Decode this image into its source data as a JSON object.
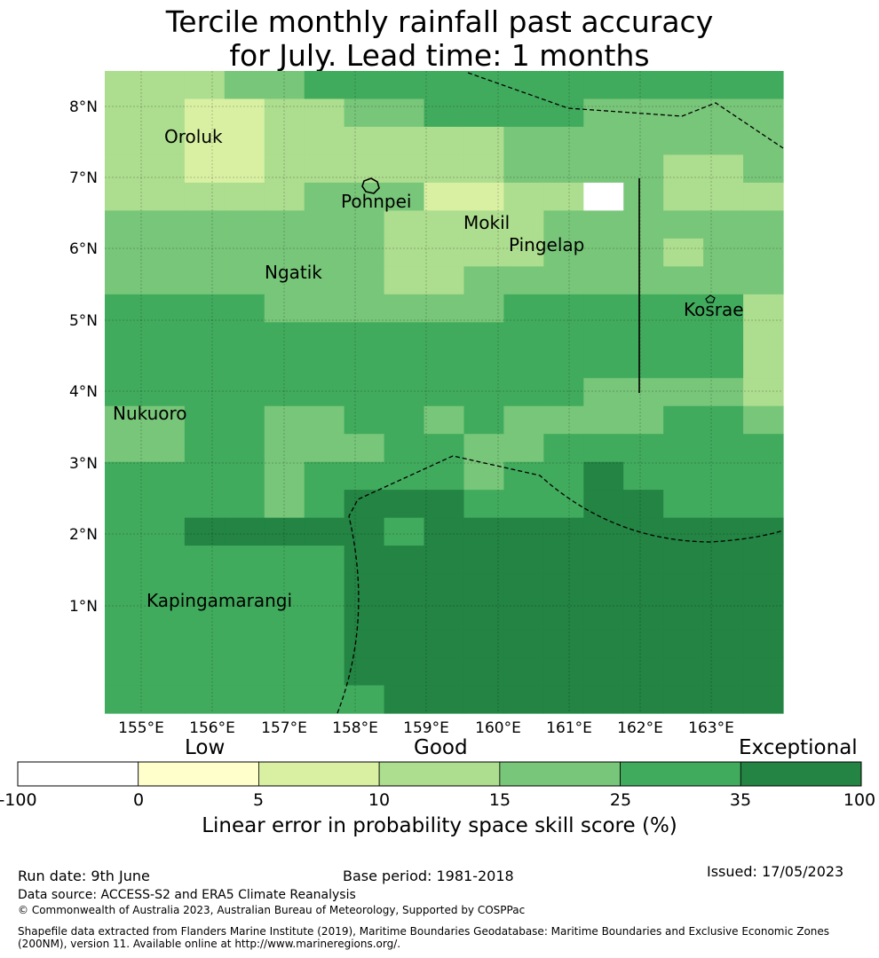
{
  "title": {
    "line1": "Tercile monthly rainfall past accuracy",
    "line2": "for July. Lead time: 1 months"
  },
  "map": {
    "lat_ticks": [
      "8°N",
      "7°N",
      "6°N",
      "5°N",
      "4°N",
      "3°N",
      "2°N",
      "1°N"
    ],
    "lon_ticks": [
      "155°E",
      "156°E",
      "157°E",
      "158°E",
      "159°E",
      "160°E",
      "161°E",
      "162°E",
      "163°E"
    ],
    "places": [
      "Oroluk",
      "Pohnpei",
      "Mokil",
      "Pingelap",
      "Ngatik",
      "Kosrae",
      "Nukuoro",
      "Kapingamarangi"
    ],
    "grid_values": [
      [
        10,
        10,
        10,
        15,
        15,
        25,
        25,
        25,
        25,
        25,
        25,
        25,
        25,
        25,
        25,
        25,
        25
      ],
      [
        10,
        10,
        5,
        5,
        10,
        10,
        15,
        15,
        25,
        25,
        25,
        25,
        15,
        15,
        15,
        15,
        15
      ],
      [
        10,
        10,
        5,
        5,
        10,
        10,
        10,
        10,
        10,
        10,
        15,
        15,
        15,
        15,
        15,
        15,
        15
      ],
      [
        10,
        10,
        5,
        5,
        10,
        10,
        10,
        10,
        10,
        10,
        15,
        15,
        15,
        15,
        10,
        10,
        15
      ],
      [
        10,
        10,
        10,
        10,
        10,
        15,
        15,
        15,
        5,
        5,
        10,
        10,
        -100,
        15,
        10,
        10,
        10
      ],
      [
        15,
        15,
        15,
        15,
        15,
        15,
        15,
        10,
        10,
        10,
        10,
        15,
        15,
        15,
        15,
        15,
        15
      ],
      [
        15,
        15,
        15,
        15,
        15,
        15,
        15,
        10,
        10,
        10,
        10,
        15,
        15,
        15,
        10,
        15,
        15
      ],
      [
        15,
        15,
        15,
        15,
        15,
        15,
        15,
        10,
        10,
        15,
        15,
        15,
        15,
        15,
        15,
        15,
        15
      ],
      [
        25,
        25,
        25,
        25,
        15,
        15,
        15,
        15,
        15,
        15,
        25,
        25,
        25,
        25,
        25,
        25,
        10
      ],
      [
        25,
        25,
        25,
        25,
        25,
        25,
        25,
        25,
        25,
        25,
        25,
        25,
        25,
        25,
        25,
        25,
        10
      ],
      [
        25,
        25,
        25,
        25,
        25,
        25,
        25,
        25,
        25,
        25,
        25,
        25,
        25,
        25,
        25,
        25,
        10
      ],
      [
        25,
        25,
        25,
        25,
        25,
        25,
        25,
        25,
        25,
        25,
        25,
        25,
        15,
        15,
        15,
        15,
        10
      ],
      [
        15,
        15,
        25,
        25,
        15,
        15,
        25,
        25,
        15,
        25,
        15,
        15,
        15,
        15,
        25,
        25,
        15
      ],
      [
        15,
        15,
        25,
        25,
        15,
        15,
        15,
        25,
        25,
        15,
        15,
        25,
        25,
        25,
        25,
        25,
        25
      ],
      [
        25,
        25,
        25,
        25,
        15,
        25,
        25,
        25,
        25,
        15,
        25,
        25,
        35,
        25,
        25,
        25,
        25
      ],
      [
        25,
        25,
        25,
        25,
        15,
        25,
        35,
        35,
        35,
        25,
        25,
        25,
        35,
        35,
        25,
        25,
        25
      ],
      [
        25,
        25,
        35,
        35,
        35,
        35,
        35,
        25,
        35,
        35,
        35,
        35,
        35,
        35,
        35,
        35,
        35
      ],
      [
        25,
        25,
        25,
        25,
        25,
        25,
        35,
        35,
        35,
        35,
        35,
        35,
        35,
        35,
        35,
        35,
        35
      ],
      [
        25,
        25,
        25,
        25,
        25,
        25,
        35,
        35,
        35,
        35,
        35,
        35,
        35,
        35,
        35,
        35,
        35
      ],
      [
        25,
        25,
        25,
        25,
        25,
        25,
        35,
        35,
        35,
        35,
        35,
        35,
        35,
        35,
        35,
        35,
        35
      ],
      [
        25,
        25,
        25,
        25,
        25,
        25,
        35,
        35,
        35,
        35,
        35,
        35,
        35,
        35,
        35,
        35,
        35
      ],
      [
        25,
        25,
        25,
        25,
        25,
        25,
        35,
        35,
        35,
        35,
        35,
        35,
        35,
        35,
        35,
        35,
        35
      ],
      [
        25,
        25,
        25,
        25,
        25,
        25,
        25,
        35,
        35,
        35,
        35,
        35,
        35,
        35,
        35,
        35,
        35
      ]
    ]
  },
  "colorbar": {
    "categories": [
      "Low",
      "Good",
      "Exceptional"
    ],
    "ticks": [
      "-100",
      "0",
      "5",
      "10",
      "15",
      "25",
      "35",
      "100"
    ],
    "colors": [
      "#ffffff",
      "#ffffcc",
      "#d9f0a3",
      "#addd8e",
      "#78c679",
      "#41ab5d",
      "#238443"
    ],
    "title": "Linear error in probability space skill score (%)"
  },
  "footer": {
    "run_date": "Run date: 9th June",
    "base_period": "Base period: 1981-2018",
    "issued": "Issued: 17/05/2023",
    "data_source": "Data source: ACCESS-S2 and ERA5 Climate Reanalysis",
    "copyright": "© Commonwealth of Australia 2023, Australian Bureau of Meteorology, Supported by COSPPac",
    "shapefile_line1": "Shapefile data extracted from Flanders Marine Institute (2019), Maritime Boundaries Geodatabase: Maritime Boundaries and Exclusive Economic Zones",
    "shapefile_line2": "(200NM), version 11. Available online at http://www.marineregions.org/."
  }
}
